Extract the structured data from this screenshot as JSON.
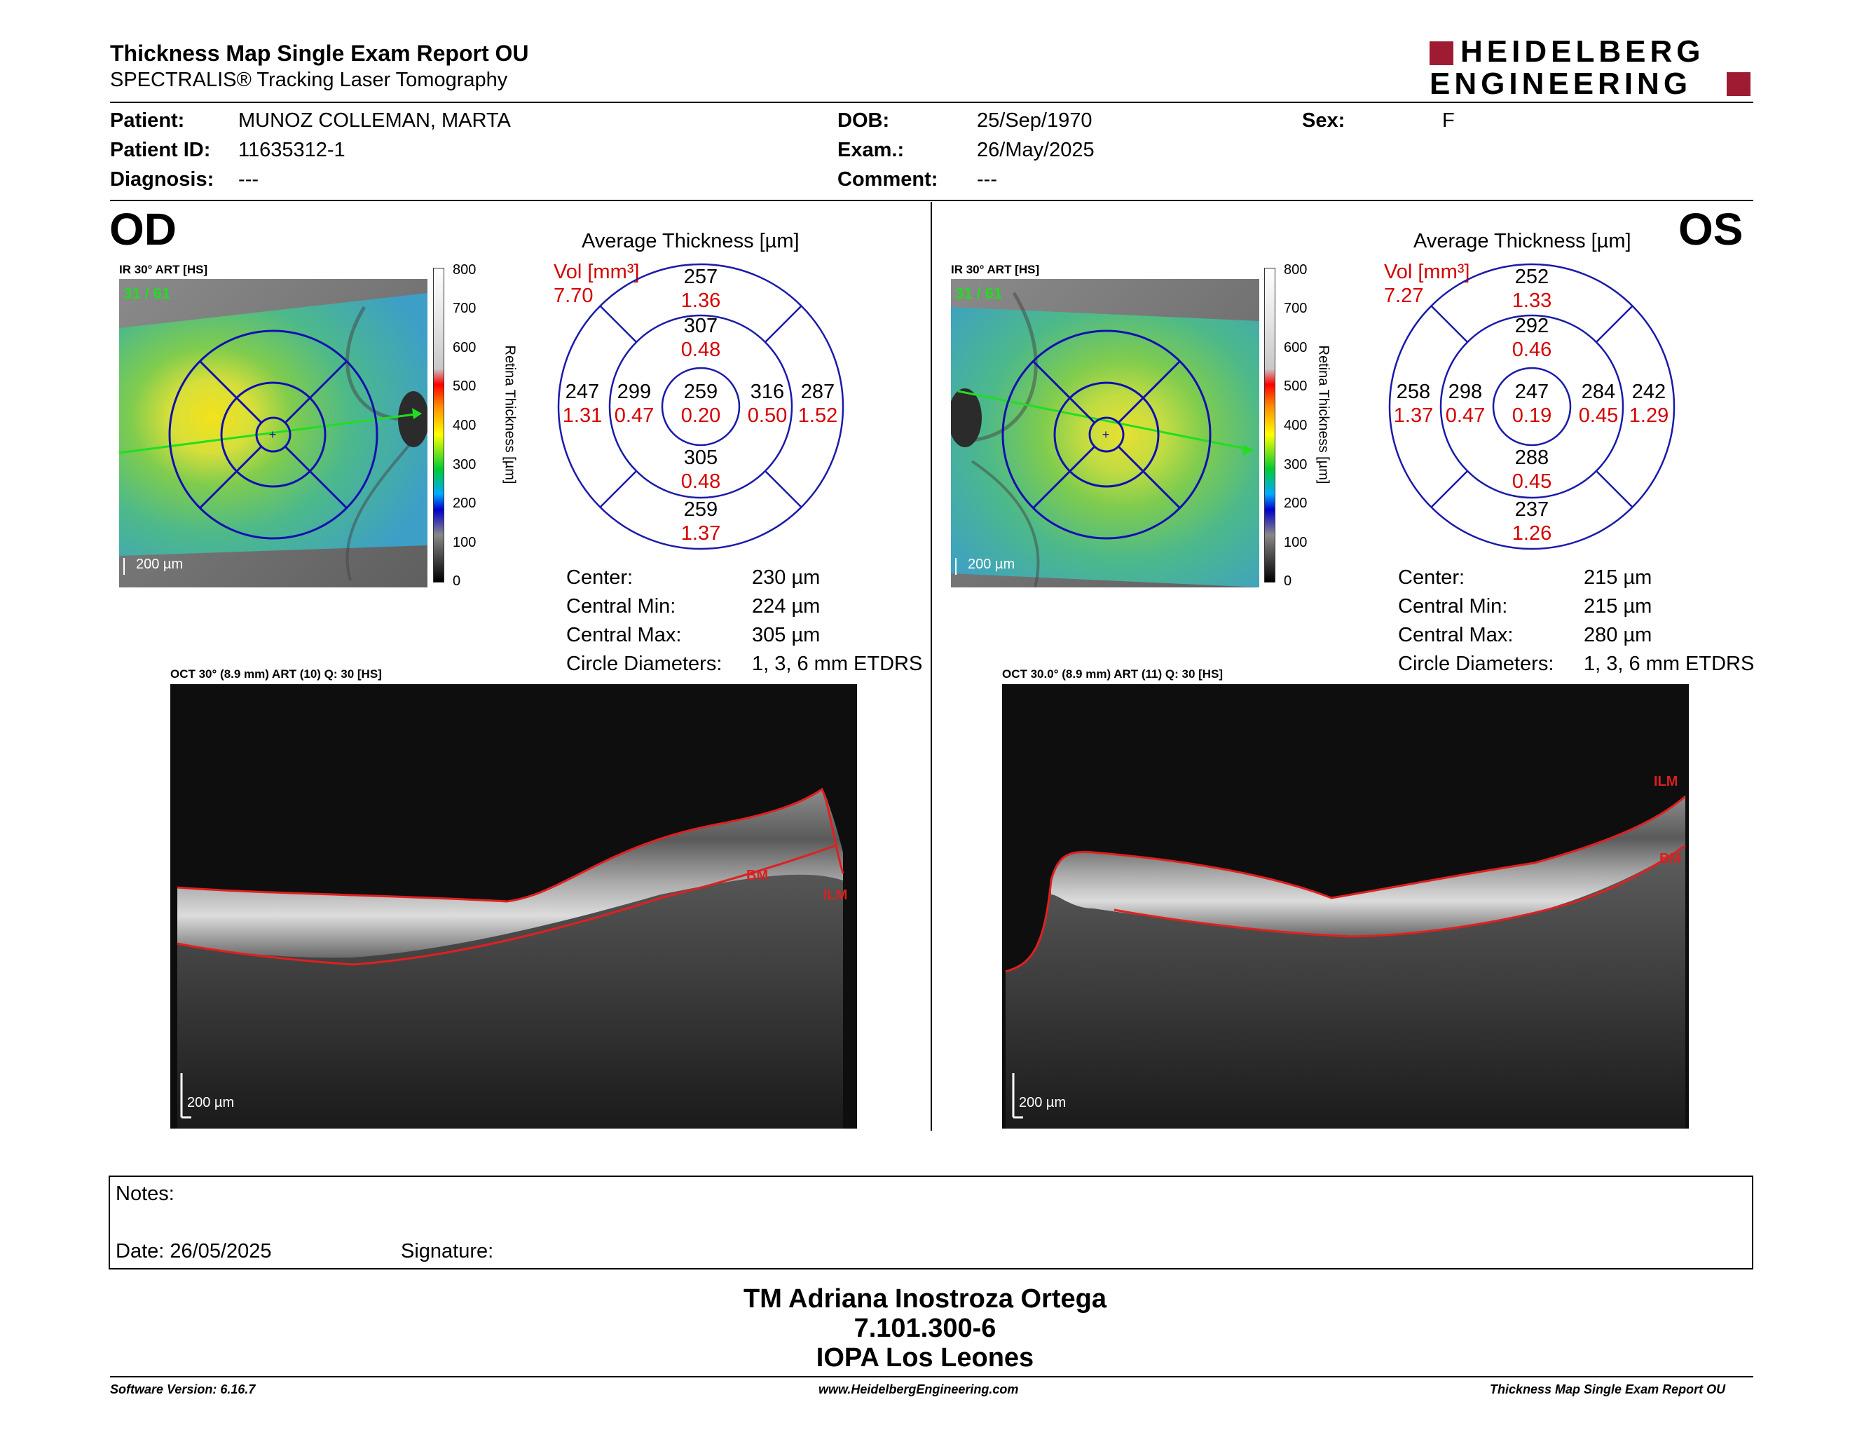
{
  "report": {
    "title": "Thickness Map Single Exam Report OU",
    "subtitle": "SPECTRALIS® Tracking Laser Tomography",
    "logo_line1": "HEIDELBERG",
    "logo_line2": "ENGINEERING"
  },
  "patient": {
    "patient_label": "Patient:",
    "patient_value": "MUNOZ COLLEMAN, MARTA",
    "id_label": "Patient ID:",
    "id_value": "11635312-1",
    "diagnosis_label": "Diagnosis:",
    "diagnosis_value": "---",
    "dob_label": "DOB:",
    "dob_value": "25/Sep/1970",
    "exam_label": "Exam.:",
    "exam_value": "26/May/2025",
    "comment_label": "Comment:",
    "comment_value": "---",
    "sex_label": "Sex:",
    "sex_value": "F"
  },
  "colorscale": {
    "ticks": [
      "800",
      "700",
      "600",
      "500",
      "400",
      "300",
      "200",
      "100",
      "0"
    ],
    "label": "Retina Thickness [µm]"
  },
  "od": {
    "eye": "OD",
    "ir_label": "IR 30° ART [HS]",
    "ir_count": "31 / 61",
    "ir_scale": "200 µm",
    "avg_title": "Average Thickness [µm]",
    "vol_label": "Vol [mm³]",
    "vol_value": "7.70",
    "grid": {
      "sup_outer": [
        "257",
        "1.36"
      ],
      "sup_inner": [
        "307",
        "0.48"
      ],
      "temp_outer": [
        "247",
        "1.31"
      ],
      "temp_inner": [
        "299",
        "0.47"
      ],
      "center": [
        "259",
        "0.20"
      ],
      "nas_inner": [
        "316",
        "0.50"
      ],
      "nas_outer": [
        "287",
        "1.52"
      ],
      "inf_inner": [
        "305",
        "0.48"
      ],
      "inf_outer": [
        "259",
        "1.37"
      ]
    },
    "stats": [
      {
        "label": "Center:",
        "value": "230 µm"
      },
      {
        "label": "Central Min:",
        "value": "224 µm"
      },
      {
        "label": "Central Max:",
        "value": "305 µm"
      },
      {
        "label": "Circle Diameters:",
        "value": "1, 3, 6 mm ETDRS"
      }
    ],
    "oct_label": "OCT 30° (8.9 mm) ART (10) Q: 30 [HS]",
    "oct_scale": "200 µm",
    "bm_label": "BM",
    "ilm_label": "ILM"
  },
  "os": {
    "eye": "OS",
    "ir_label": "IR 30° ART [HS]",
    "ir_count": "31 / 61",
    "ir_scale": "200 µm",
    "avg_title": "Average Thickness [µm]",
    "vol_label": "Vol [mm³]",
    "vol_value": "7.27",
    "grid": {
      "sup_outer": [
        "252",
        "1.33"
      ],
      "sup_inner": [
        "292",
        "0.46"
      ],
      "temp_outer": [
        "258",
        "1.37"
      ],
      "temp_inner": [
        "298",
        "0.47"
      ],
      "center": [
        "247",
        "0.19"
      ],
      "nas_inner": [
        "284",
        "0.45"
      ],
      "nas_outer": [
        "242",
        "1.29"
      ],
      "inf_inner": [
        "288",
        "0.45"
      ],
      "inf_outer": [
        "237",
        "1.26"
      ]
    },
    "stats": [
      {
        "label": "Center:",
        "value": "215 µm"
      },
      {
        "label": "Central Min:",
        "value": "215 µm"
      },
      {
        "label": "Central Max:",
        "value": "280 µm"
      },
      {
        "label": "Circle Diameters:",
        "value": "1, 3, 6 mm ETDRS"
      }
    ],
    "oct_label": "OCT 30.0° (8.9 mm) ART (11) Q: 30 [HS]",
    "oct_scale": "200 µm",
    "bm_label": "BM",
    "ilm_label": "ILM"
  },
  "notes": {
    "notes_label": "Notes:",
    "date_label": "Date: 26/05/2025",
    "signature_label": "Signature:"
  },
  "signature_block": {
    "line1": "TM Adriana Inostroza Ortega",
    "line2": "7.101.300-6",
    "line3": "IOPA Los Leones"
  },
  "footer": {
    "software": "Software Version: 6.16.7",
    "website": "www.HeidelbergEngineering.com",
    "report_name": "Thickness Map Single Exam Report OU"
  }
}
